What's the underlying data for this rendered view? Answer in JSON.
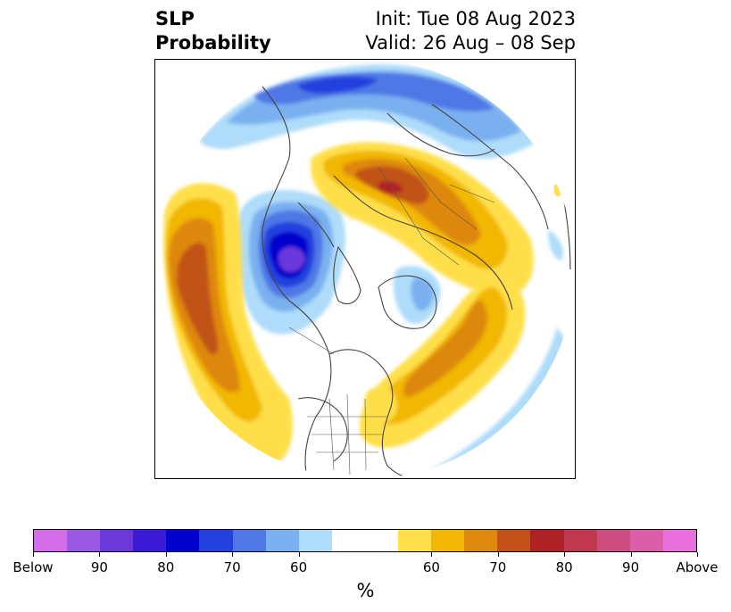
{
  "title": {
    "left_line1": "SLP",
    "left_line2": "Probability",
    "init": "Init: Tue 08 Aug 2023",
    "valid": "Valid: 26 Aug – 08 Sep"
  },
  "colorbar": {
    "colors": [
      "#d36ee8",
      "#9b58e2",
      "#6b38da",
      "#3a1ad6",
      "#0000cc",
      "#2441de",
      "#4f78e6",
      "#7ab0f0",
      "#aedcfa",
      "#ffffff",
      "#ffdf4a",
      "#f2b705",
      "#dd880f",
      "#c25219",
      "#ae2225",
      "#bf3850",
      "#cc4d80",
      "#da5ea8",
      "#e96fdc"
    ],
    "labels": [
      "Below",
      "90",
      "80",
      "70",
      "60",
      "60",
      "70",
      "80",
      "90",
      "Above"
    ],
    "unit": "%"
  },
  "map": {
    "projection": "north-polar-stereographic",
    "features": [
      "coastlines",
      "country-borders",
      "us-state-borders"
    ]
  }
}
